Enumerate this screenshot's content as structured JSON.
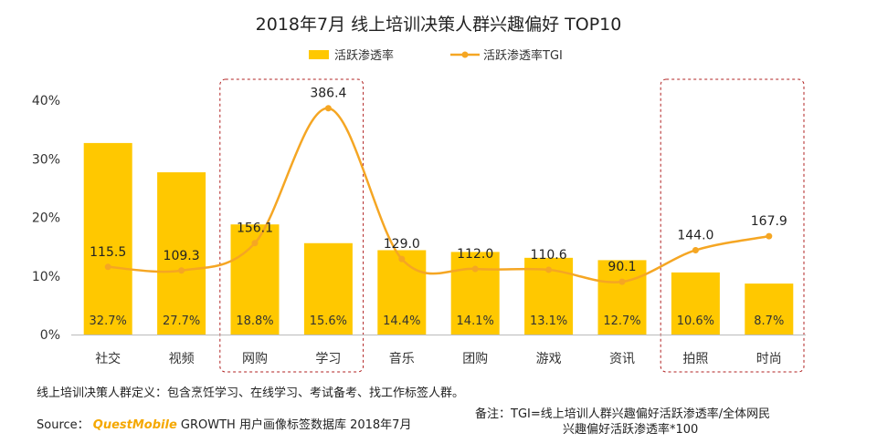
{
  "chart_data": {
    "type": "bar+line",
    "title": "2018年7月 线上培训决策人群兴趣偏好 TOP10",
    "categories": [
      "社交",
      "视频",
      "网购",
      "学习",
      "音乐",
      "团购",
      "游戏",
      "资讯",
      "拍照",
      "时尚"
    ],
    "series": [
      {
        "name": "活跃渗透率",
        "type": "bar",
        "axis": "left",
        "color": "#ffc800",
        "values": [
          32.7,
          27.7,
          18.8,
          15.6,
          14.4,
          14.1,
          13.1,
          12.7,
          10.6,
          8.7
        ],
        "labels": [
          "32.7%",
          "27.7%",
          "18.8%",
          "15.6%",
          "14.4%",
          "14.1%",
          "13.1%",
          "12.7%",
          "10.6%",
          "8.7%"
        ]
      },
      {
        "name": "活跃渗透率TGI",
        "type": "line",
        "axis": "secondary",
        "color": "#f5a623",
        "values": [
          115.5,
          109.3,
          156.1,
          386.4,
          129.0,
          112.0,
          110.6,
          90.1,
          144.0,
          167.9
        ],
        "labels": [
          "115.5",
          "109.3",
          "156.1",
          "386.4",
          "129.0",
          "112.0",
          "110.6",
          "90.1",
          "144.0",
          "167.9"
        ]
      }
    ],
    "y_ticks": [
      "0%",
      "10%",
      "20%",
      "30%",
      "40%"
    ],
    "ylim": [
      0,
      40
    ],
    "y2lim": [
      0,
      400
    ],
    "legend_position": "top",
    "highlight_groups": [
      [
        "网购",
        "学习"
      ],
      [
        "拍照",
        "时尚"
      ]
    ],
    "grid": false
  },
  "footer": {
    "definition": "线上培训决策人群定义：包含烹饪学习、在线学习、考试备考、找工作标签人群。",
    "source_label": "Source：",
    "source_brand": "QuestMobile",
    "source_text": "GROWTH 用户画像标签数据库 2018年7月",
    "note_line1": "备注：TGI=线上培训人群兴趣偏好活跃渗透率/全体网民",
    "note_line2": "兴趣偏好活跃渗透率*100"
  }
}
